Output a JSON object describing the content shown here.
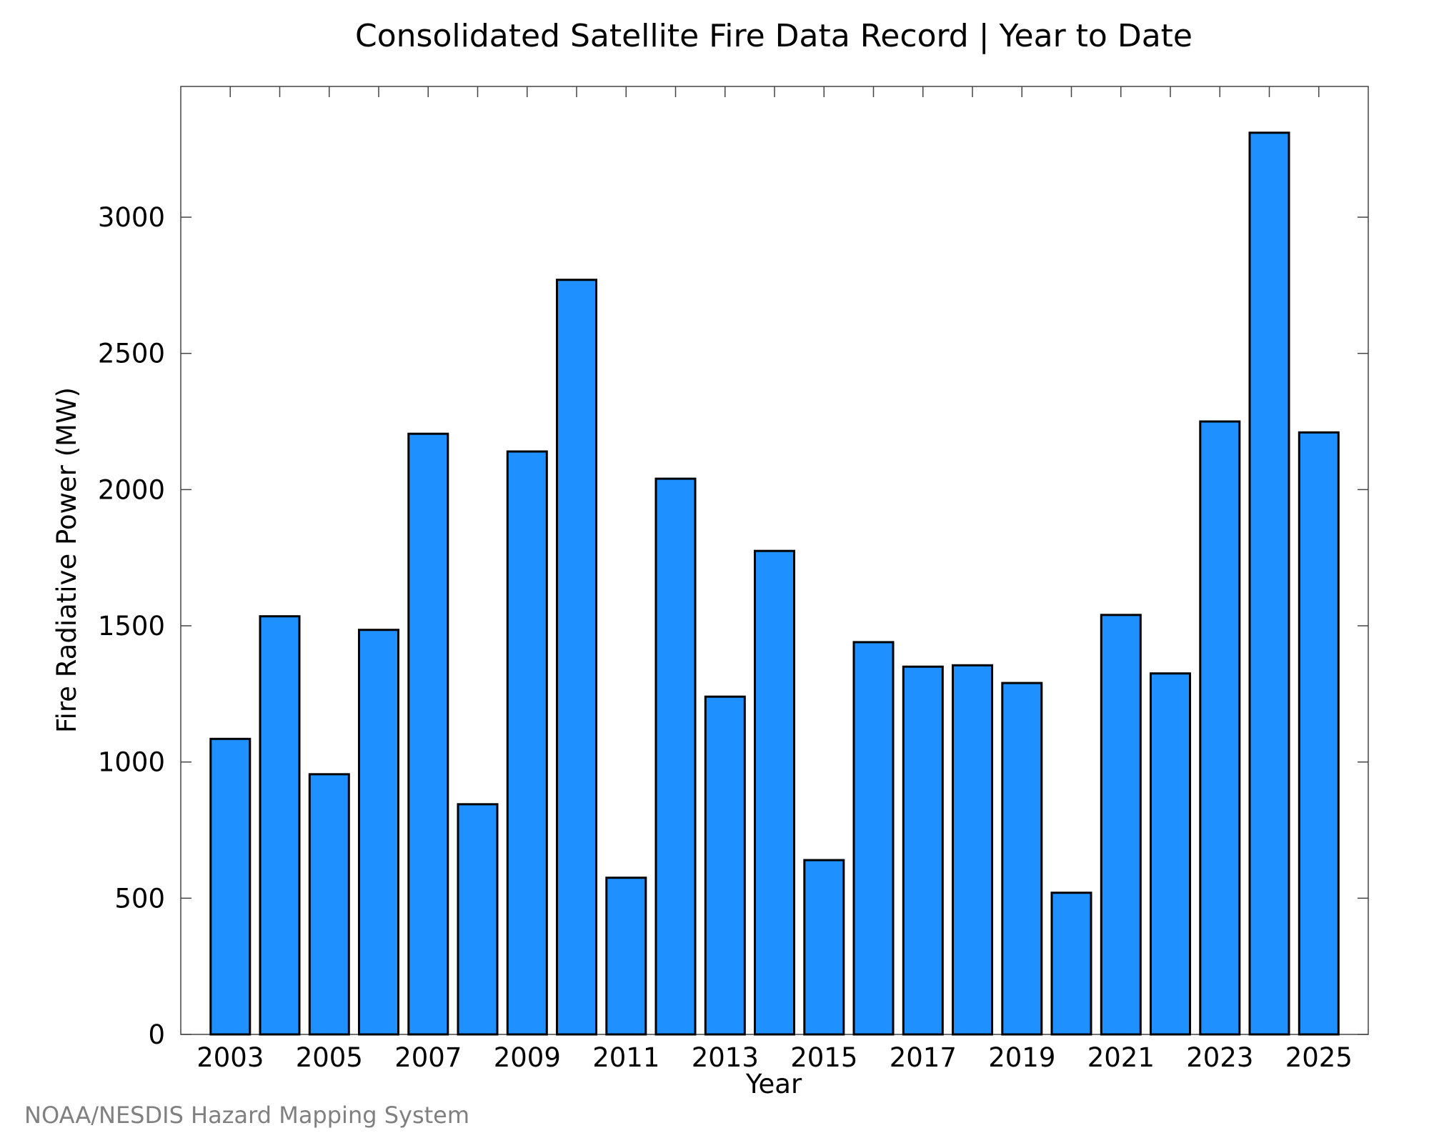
{
  "chart_data": {
    "type": "bar",
    "title": "Consolidated Satellite Fire Data Record | Year to Date",
    "xlabel": "Year",
    "ylabel": "Fire Radiative Power (MW)",
    "categories": [
      "2003",
      "2004",
      "2005",
      "2006",
      "2007",
      "2008",
      "2009",
      "2010",
      "2011",
      "2012",
      "2013",
      "2014",
      "2015",
      "2016",
      "2017",
      "2018",
      "2019",
      "2020",
      "2021",
      "2022",
      "2023",
      "2024",
      "2025"
    ],
    "values": [
      1085,
      1535,
      955,
      1485,
      2205,
      845,
      2140,
      2770,
      575,
      2040,
      1240,
      1775,
      640,
      1440,
      1350,
      1355,
      1290,
      520,
      1540,
      1325,
      2250,
      3310,
      2210
    ],
    "ylim": [
      0,
      3480
    ],
    "yticks": [
      0,
      500,
      1000,
      1500,
      2000,
      2500,
      3000
    ],
    "xtick_labels": [
      "2003",
      "2005",
      "2007",
      "2009",
      "2011",
      "2013",
      "2015",
      "2017",
      "2019",
      "2021",
      "2023",
      "2025"
    ],
    "grid": false,
    "bar_color": "#1e90ff",
    "edge_color": "#000000"
  },
  "credit": "NOAA/NESDIS Hazard Mapping System"
}
